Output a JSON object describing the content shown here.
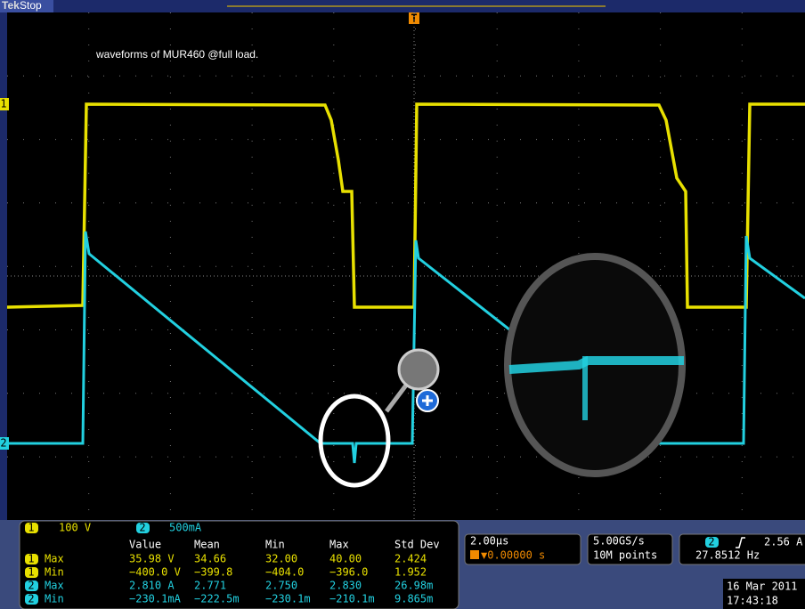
{
  "header": {
    "brand": "Tek",
    "status": "Stop",
    "trigger_marker": "T"
  },
  "title": "waveforms of MUR460 @full load.",
  "channel_markers": [
    "1",
    "2"
  ],
  "channel_scales": [
    {
      "channel": "1",
      "scale": "100 V"
    },
    {
      "channel": "2",
      "scale": "500mA"
    }
  ],
  "measurements": {
    "columns": [
      "Value",
      "Mean",
      "Min",
      "Max",
      "Std Dev"
    ],
    "rows": [
      {
        "channel": "1",
        "label": "Max",
        "cells": [
          "35.98 V",
          "34.66",
          "32.00",
          "40.00",
          "2.424"
        ]
      },
      {
        "channel": "1",
        "label": "Min",
        "cells": [
          "−400.0 V",
          "−399.8",
          "−404.0",
          "−396.0",
          "1.952"
        ]
      },
      {
        "channel": "2",
        "label": "Max",
        "cells": [
          "2.810 A",
          "2.771",
          "2.750",
          "2.830",
          "26.98m"
        ]
      },
      {
        "channel": "2",
        "label": "Min",
        "cells": [
          "−230.1mA",
          "−222.5m",
          "−230.1m",
          "−210.1m",
          "9.865m"
        ]
      }
    ]
  },
  "timebase": {
    "scale": "2.00µs",
    "position": "▼0.00000 s"
  },
  "acquisition": {
    "sample_rate": "5.00GS/s",
    "record_length": "10M points"
  },
  "trigger": {
    "channel": "2",
    "level": "2.56 A",
    "frequency": "27.8512 Hz"
  },
  "datetime": {
    "date": "16 Mar 2011",
    "time": "17:43:18"
  }
}
